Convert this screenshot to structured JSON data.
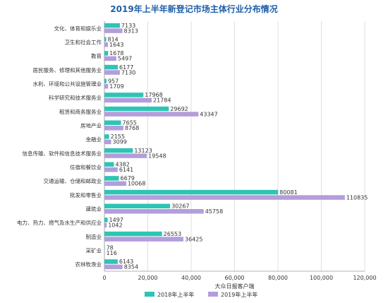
{
  "chart_data": {
    "type": "bar",
    "orientation": "horizontal",
    "title": "2019年上半年新登记市场主体行业分布情况",
    "xlabel": "大众日报客户端",
    "xlim": [
      0,
      120000
    ],
    "xticks": [
      "0",
      "20,000",
      "40,000",
      "60,000",
      "80,000",
      "100,000",
      "120,000"
    ],
    "xtick_values": [
      0,
      20000,
      40000,
      60000,
      80000,
      100000,
      120000
    ],
    "grid": true,
    "legend_position": "bottom",
    "categories": [
      "文化、体育和娱乐业",
      "卫生和社会工作",
      "教育",
      "居民服务、修理和其他服务业",
      "水利、环境和公共设施管理业",
      "科学研究和技术服务业",
      "租赁和商务服务业",
      "房地产业",
      "金融业",
      "信息传输、软件和信息技术服务业",
      "住宿和餐饮业",
      "交通运输、仓储和邮政业",
      "批发和零售业",
      "建筑业",
      "电力、热力、燃气及水生产和供应业",
      "制造业",
      "采矿业",
      "农林牧渔业"
    ],
    "series": [
      {
        "name": "2018年上半年",
        "color": "#2ec4b6",
        "values": [
          7133,
          814,
          1678,
          6177,
          957,
          17968,
          29692,
          7655,
          2155,
          13123,
          4382,
          6679,
          80081,
          30267,
          1497,
          26553,
          78,
          6143
        ]
      },
      {
        "name": "2019年上半年",
        "color": "#b39ddb",
        "values": [
          8313,
          1643,
          5497,
          7130,
          1709,
          21784,
          43347,
          8768,
          3099,
          19548,
          6141,
          10068,
          110835,
          45758,
          1042,
          36425,
          116,
          8354
        ]
      }
    ]
  }
}
